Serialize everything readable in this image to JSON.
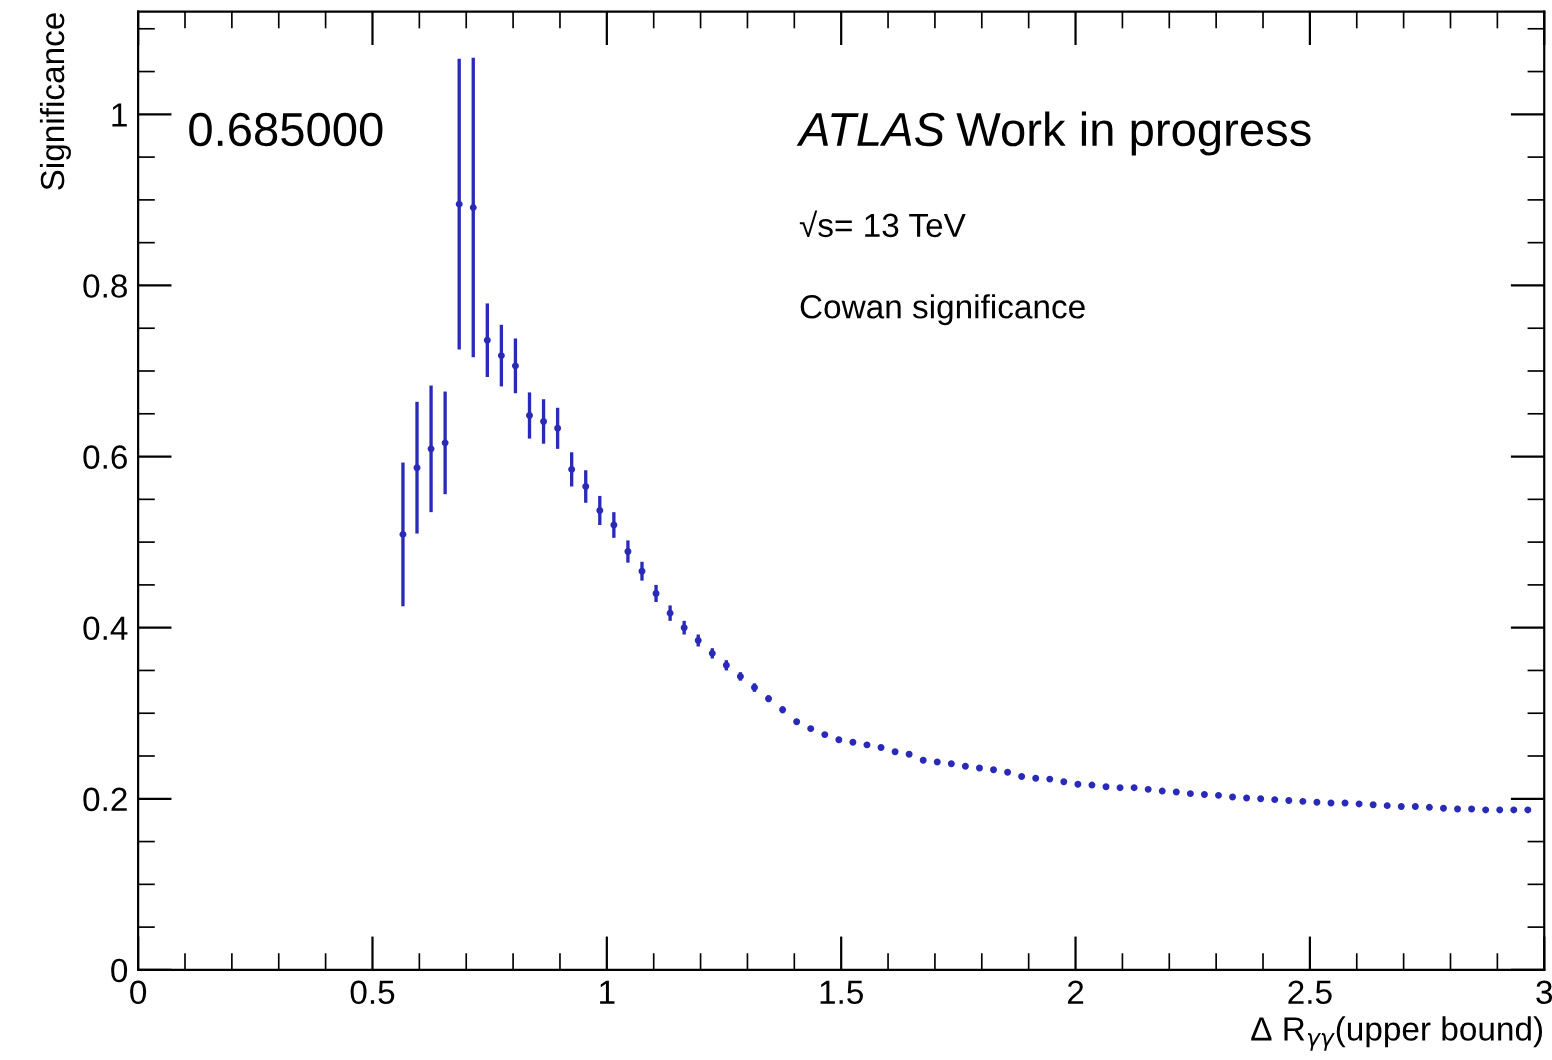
{
  "chart_data": {
    "type": "scatter",
    "xlabel": "Δ R$_{γγ}$(upper bound)",
    "ylabel": "Significance",
    "annotations": [
      "0.685000",
      "ATLAS",
      "Work in progress",
      "√s= 13 TeV",
      "Cowan significance"
    ],
    "x": [
      0.565,
      0.595,
      0.625,
      0.655,
      0.685,
      0.715,
      0.745,
      0.775,
      0.805,
      0.835,
      0.865,
      0.895,
      0.925,
      0.955,
      0.985,
      1.015,
      1.045,
      1.075,
      1.105,
      1.135,
      1.165,
      1.195,
      1.225,
      1.255,
      1.285,
      1.315,
      1.345,
      1.375,
      1.405,
      1.435,
      1.465,
      1.495,
      1.525,
      1.555,
      1.585,
      1.615,
      1.645,
      1.675,
      1.705,
      1.735,
      1.765,
      1.795,
      1.825,
      1.855,
      1.885,
      1.915,
      1.945,
      1.975,
      2.005,
      2.035,
      2.065,
      2.095,
      2.125,
      2.155,
      2.185,
      2.215,
      2.245,
      2.275,
      2.305,
      2.335,
      2.365,
      2.395,
      2.425,
      2.455,
      2.485,
      2.515,
      2.545,
      2.575,
      2.605,
      2.635,
      2.665,
      2.695,
      2.725,
      2.755,
      2.785,
      2.815,
      2.845,
      2.875,
      2.905,
      2.935,
      2.965
    ],
    "series": [
      {
        "color": "#2a2ab8",
        "values": [
          0.509,
          0.587,
          0.609,
          0.616,
          0.895,
          0.891,
          0.736,
          0.718,
          0.706,
          0.648,
          0.641,
          0.633,
          0.585,
          0.565,
          0.537,
          0.52,
          0.489,
          0.466,
          0.44,
          0.417,
          0.4,
          0.385,
          0.37,
          0.356,
          0.343,
          0.33,
          0.317,
          0.304,
          0.29,
          0.282,
          0.275,
          0.269,
          0.266,
          0.263,
          0.26,
          0.255,
          0.252,
          0.245,
          0.243,
          0.241,
          0.238,
          0.236,
          0.234,
          0.231,
          0.226,
          0.224,
          0.223,
          0.22,
          0.217,
          0.216,
          0.214,
          0.213,
          0.213,
          0.211,
          0.209,
          0.208,
          0.206,
          0.205,
          0.204,
          0.202,
          0.201,
          0.2,
          0.199,
          0.198,
          0.197,
          0.196,
          0.195,
          0.195,
          0.194,
          0.193,
          0.192,
          0.191,
          0.191,
          0.19,
          0.189,
          0.188,
          0.188,
          0.187,
          0.187,
          0.187,
          0.187
        ],
        "errors": [
          0.084,
          0.077,
          0.074,
          0.06,
          0.17,
          0.175,
          0.043,
          0.036,
          0.032,
          0.027,
          0.026,
          0.024,
          0.02,
          0.019,
          0.017,
          0.015,
          0.013,
          0.011,
          0.01,
          0.009,
          0.008,
          0.007,
          0.006,
          0.006,
          0.005,
          0.005,
          0.004,
          0.004,
          0.003,
          0.003,
          0.003,
          0.003,
          0.003,
          0.003,
          0.003,
          0.003,
          0.003,
          0.002,
          0.002,
          0.002,
          0.002,
          0.002,
          0.002,
          0.002,
          0.002,
          0.002,
          0.002,
          0.002,
          0.002,
          0.002,
          0.002,
          0.002,
          0.002,
          0.002,
          0.002,
          0.002,
          0.002,
          0.002,
          0.002,
          0.002,
          0.002,
          0.002,
          0.002,
          0.002,
          0.002,
          0.002,
          0.002,
          0.002,
          0.002,
          0.002,
          0.002,
          0.002,
          0.002,
          0.002,
          0.002,
          0.002,
          0.002,
          0.002,
          0.002,
          0.002,
          0.002
        ]
      }
    ],
    "xlim": [
      0,
      3
    ],
    "xticks": [
      0,
      0.5,
      1,
      1.5,
      2,
      2.5,
      3
    ],
    "ylim": [
      0,
      1.12
    ],
    "yticks": [
      0,
      0.2,
      0.4,
      0.6,
      0.8,
      1
    ],
    "marker": "circle",
    "grid": false,
    "legend": false
  }
}
